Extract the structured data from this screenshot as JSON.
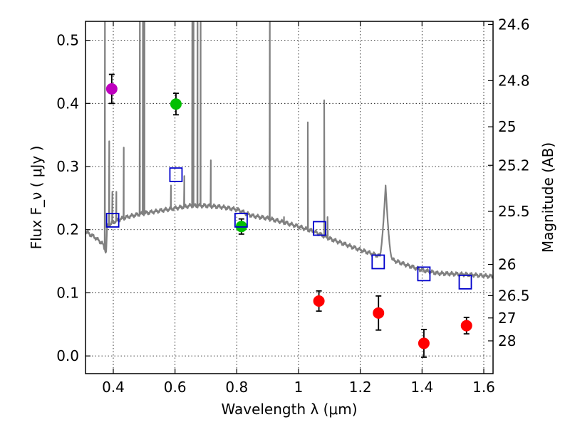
{
  "chart_data": {
    "type": "scatter",
    "xlabel": "Wavelength  λ (μm)",
    "ylabel": "Flux  F_ν  ( μJy )",
    "ylabel_right": "Magnitude (AB)",
    "xlim": [
      0.31,
      1.63
    ],
    "ylim": [
      -0.028,
      0.53
    ],
    "x_ticks": [
      0.4,
      0.6,
      0.8,
      1.0,
      1.2,
      1.4,
      1.6
    ],
    "x_tick_labels": [
      "0.4",
      "0.6",
      "0.8",
      "1",
      "1.2",
      "1.4",
      "1.6"
    ],
    "y_ticks": [
      0.0,
      0.1,
      0.2,
      0.3,
      0.4,
      0.5
    ],
    "y_tick_labels": [
      "0.0",
      "0.1",
      "0.2",
      "0.3",
      "0.4",
      "0.5"
    ],
    "right_ticks": [
      {
        "label": "24.6",
        "flux": 0.525
      },
      {
        "label": "24.8",
        "flux": 0.436
      },
      {
        "label": "25",
        "flux": 0.363
      },
      {
        "label": "25.2",
        "flux": 0.302
      },
      {
        "label": "25.5",
        "flux": 0.229
      },
      {
        "label": "26",
        "flux": 0.145
      },
      {
        "label": "26.5",
        "flux": 0.0955
      },
      {
        "label": "27",
        "flux": 0.0602
      },
      {
        "label": "28",
        "flux": 0.0239
      }
    ],
    "grid": true,
    "series": [
      {
        "name": "photometry_purple",
        "marker": "circle",
        "color": "#bf00bf",
        "points": [
          {
            "x": 0.395,
            "y": 0.423,
            "err": 0.023
          }
        ]
      },
      {
        "name": "photometry_green",
        "marker": "circle",
        "color": "#00bf00",
        "points": [
          {
            "x": 0.603,
            "y": 0.399,
            "err": 0.017
          },
          {
            "x": 0.815,
            "y": 0.205,
            "err": 0.012
          }
        ]
      },
      {
        "name": "photometry_red",
        "marker": "circle",
        "color": "#ff0000",
        "points": [
          {
            "x": 1.066,
            "y": 0.087,
            "err": 0.016
          },
          {
            "x": 1.259,
            "y": 0.068,
            "err": 0.027
          },
          {
            "x": 1.406,
            "y": 0.02,
            "err": 0.022
          },
          {
            "x": 1.544,
            "y": 0.048,
            "err": 0.013
          }
        ]
      },
      {
        "name": "model_photometry",
        "marker": "square-open",
        "color": "#0000cc",
        "points": [
          {
            "x": 0.398,
            "y": 0.215
          },
          {
            "x": 0.603,
            "y": 0.287
          },
          {
            "x": 0.814,
            "y": 0.215
          },
          {
            "x": 1.068,
            "y": 0.202
          },
          {
            "x": 1.258,
            "y": 0.149
          },
          {
            "x": 1.406,
            "y": 0.13
          },
          {
            "x": 1.54,
            "y": 0.117
          }
        ]
      }
    ],
    "spectrum": {
      "name": "model_spectrum",
      "color": "#808080",
      "continuum": [
        [
          0.31,
          0.197
        ],
        [
          0.34,
          0.188
        ],
        [
          0.365,
          0.178
        ],
        [
          0.372,
          0.17
        ],
        [
          0.377,
          0.164
        ],
        [
          0.38,
          0.205
        ],
        [
          0.4,
          0.212
        ],
        [
          0.43,
          0.218
        ],
        [
          0.46,
          0.222
        ],
        [
          0.5,
          0.226
        ],
        [
          0.55,
          0.23
        ],
        [
          0.6,
          0.234
        ],
        [
          0.65,
          0.238
        ],
        [
          0.7,
          0.238
        ],
        [
          0.75,
          0.236
        ],
        [
          0.8,
          0.232
        ],
        [
          0.85,
          0.222
        ],
        [
          0.9,
          0.218
        ],
        [
          0.95,
          0.212
        ],
        [
          1.0,
          0.205
        ],
        [
          1.05,
          0.197
        ],
        [
          1.1,
          0.186
        ],
        [
          1.15,
          0.177
        ],
        [
          1.2,
          0.168
        ],
        [
          1.25,
          0.16
        ],
        [
          1.3,
          0.153
        ],
        [
          1.35,
          0.144
        ],
        [
          1.4,
          0.136
        ],
        [
          1.45,
          0.131
        ],
        [
          1.5,
          0.13
        ],
        [
          1.55,
          0.129
        ],
        [
          1.6,
          0.127
        ],
        [
          1.63,
          0.126
        ]
      ],
      "lines": [
        [
          0.373,
          0.55
        ],
        [
          0.3868,
          0.34
        ],
        [
          0.397,
          0.26
        ],
        [
          0.41,
          0.26
        ],
        [
          0.434,
          0.33
        ],
        [
          0.486,
          0.55
        ],
        [
          0.496,
          0.55
        ],
        [
          0.501,
          0.55
        ],
        [
          0.587,
          0.27
        ],
        [
          0.63,
          0.285
        ],
        [
          0.656,
          0.55
        ],
        [
          0.66,
          0.55
        ],
        [
          0.673,
          0.55
        ],
        [
          0.683,
          0.55
        ],
        [
          0.716,
          0.31
        ],
        [
          0.907,
          0.55
        ],
        [
          0.953,
          0.22
        ],
        [
          1.03,
          0.37
        ],
        [
          1.083,
          0.405
        ],
        [
          1.094,
          0.22
        ]
      ],
      "broad_features": [
        [
          1.282,
          0.27,
          0.02
        ]
      ]
    }
  }
}
